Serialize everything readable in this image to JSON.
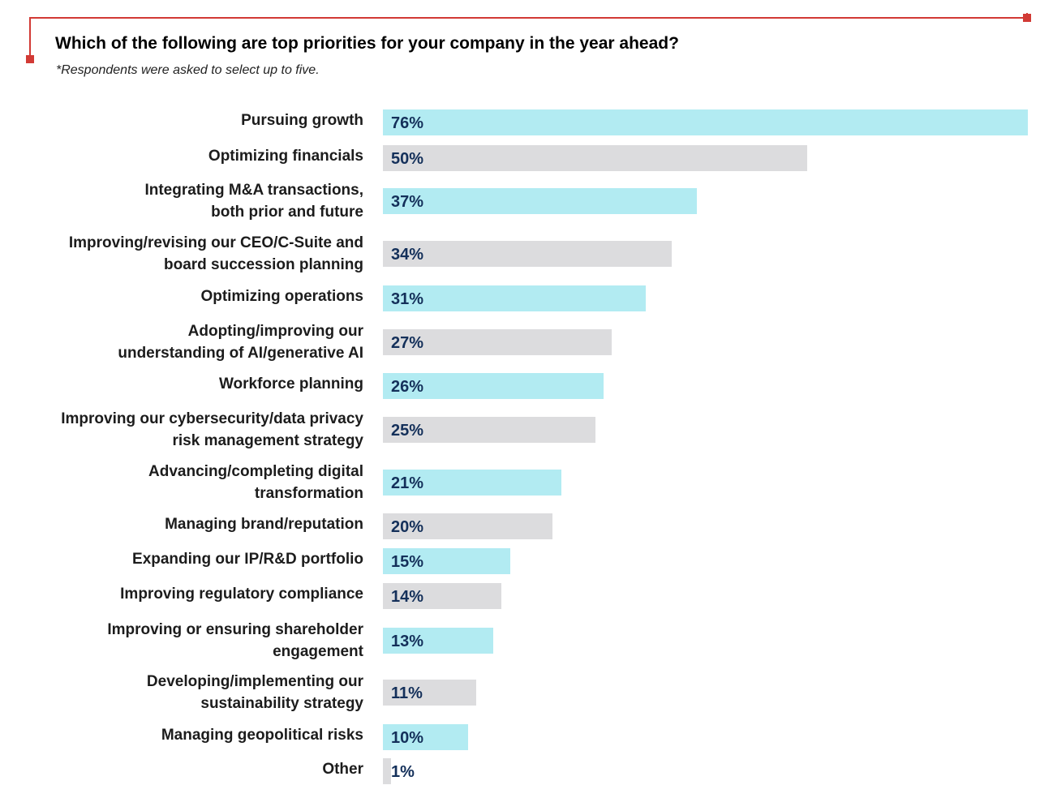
{
  "title": "Which of the following are top priorities for your company in the year ahead?",
  "subtitle": "*Respondents were asked to select up to five.",
  "colors": {
    "accent": "#d23a35",
    "bar_primary": "#b2ebf2",
    "bar_secondary": "#dcdcde",
    "value_text": "#14305a"
  },
  "chart_data": {
    "type": "bar",
    "orientation": "horizontal",
    "title": "Which of the following are top priorities for your company in the year ahead?",
    "subtitle": "*Respondents were asked to select up to five.",
    "xlabel": "",
    "ylabel": "",
    "xlim": [
      0,
      76
    ],
    "grid": false,
    "categories": [
      [
        "Pursuing growth"
      ],
      [
        "Optimizing financials"
      ],
      [
        "Integrating M&A transactions,",
        "both prior and future"
      ],
      [
        "Improving/revising our CEO/C-Suite and",
        "board succession planning"
      ],
      [
        "Optimizing operations"
      ],
      [
        "Adopting/improving our",
        "understanding of AI/generative AI"
      ],
      [
        "Workforce planning"
      ],
      [
        "Improving our cybersecurity/data privacy",
        "risk management strategy"
      ],
      [
        "Advancing/completing digital",
        "transformation"
      ],
      [
        "Managing brand/reputation"
      ],
      [
        "Expanding our IP/R&D portfolio"
      ],
      [
        "Improving regulatory compliance"
      ],
      [
        "Improving or ensuring shareholder",
        "engagement"
      ],
      [
        "Developing/implementing our",
        "sustainability strategy"
      ],
      [
        "Managing geopolitical risks"
      ],
      [
        "Other"
      ]
    ],
    "values": [
      76,
      50,
      37,
      34,
      31,
      27,
      26,
      25,
      21,
      20,
      15,
      14,
      13,
      11,
      10,
      1
    ],
    "value_labels": [
      "76%",
      "50%",
      "37%",
      "34%",
      "31%",
      "27%",
      "26%",
      "25%",
      "21%",
      "20%",
      "15%",
      "14%",
      "13%",
      "11%",
      "10%",
      "1%"
    ]
  }
}
